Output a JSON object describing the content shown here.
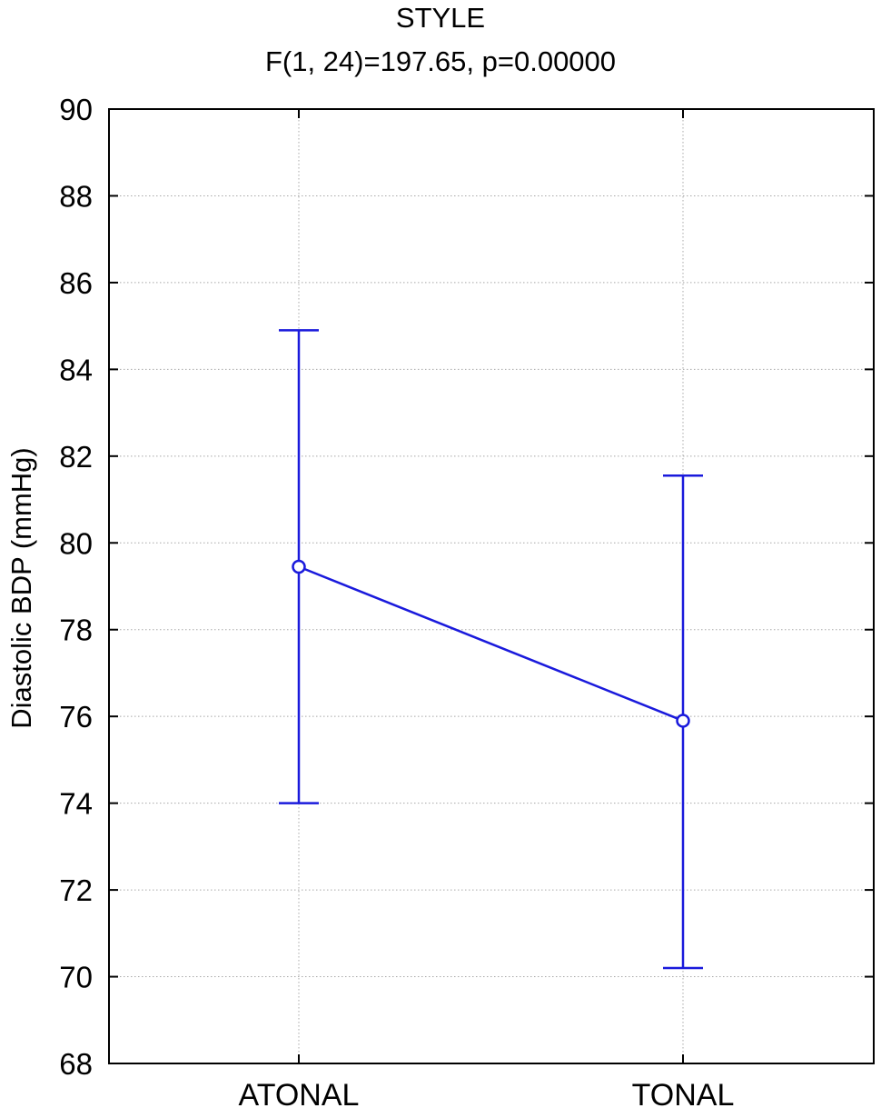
{
  "chart_data": {
    "type": "line",
    "title": "STYLE",
    "subtitle": "F(1, 24)=197.65, p=0.00000",
    "xlabel": "",
    "ylabel": "Diastolic BDP (mmHg)",
    "categories": [
      "ATONAL",
      "TONAL"
    ],
    "ylim": [
      68,
      90
    ],
    "yticks": [
      68,
      70,
      72,
      74,
      76,
      78,
      80,
      82,
      84,
      86,
      88,
      90
    ],
    "ytick_labels": [
      "68",
      "70",
      "72",
      "74",
      "76",
      "78",
      "80",
      "82",
      "84",
      "86",
      "88",
      "90"
    ],
    "grid": true,
    "series": [
      {
        "values": [
          79.45,
          75.9
        ],
        "error_low": [
          74.0,
          70.2
        ],
        "error_high": [
          84.9,
          81.55
        ],
        "color": "#1a1adc",
        "marker": "open-circle"
      }
    ]
  }
}
